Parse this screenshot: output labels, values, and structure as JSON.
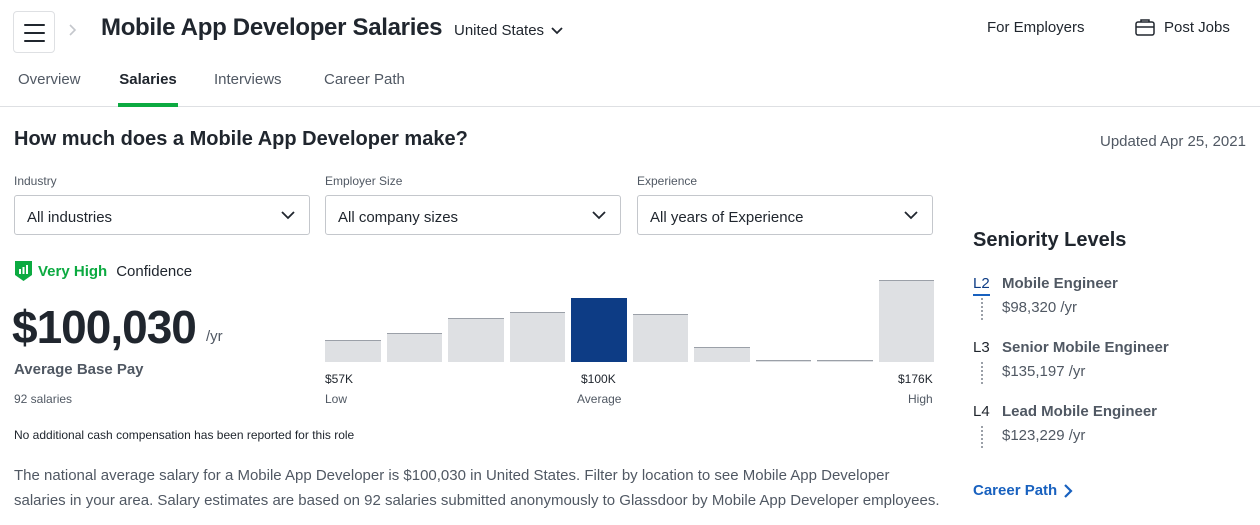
{
  "header": {
    "title": "Mobile App Developer Salaries",
    "location": "United States",
    "for_employers": "For Employers",
    "post_jobs": "Post Jobs"
  },
  "tabs": [
    {
      "label": "Overview",
      "active": false
    },
    {
      "label": "Salaries",
      "active": true
    },
    {
      "label": "Interviews",
      "active": false
    },
    {
      "label": "Career Path",
      "active": false
    }
  ],
  "main": {
    "heading": "How much does a Mobile App Developer make?",
    "updated": "Updated Apr 25, 2021",
    "filters": [
      {
        "label": "Industry",
        "value": "All industries"
      },
      {
        "label": "Employer Size",
        "value": "All company sizes"
      },
      {
        "label": "Experience",
        "value": "All years of Experience"
      }
    ],
    "confidence": {
      "level": "Very High",
      "word": "Confidence"
    },
    "pay": {
      "amount": "$100,030",
      "unit": "/yr",
      "label": "Average Base Pay",
      "count": "92 salaries"
    },
    "no_cash_note": "No additional cash compensation has been reported for this role",
    "description": "The national average salary for a Mobile App Developer is $100,030 in United States. Filter by location to see Mobile App Developer salaries in your area. Salary estimates are based on 92 salaries submitted anonymously to Glassdoor by Mobile App Developer employees."
  },
  "chart_data": {
    "type": "bar",
    "bins": 10,
    "relative_heights": [
      0.27,
      0.35,
      0.54,
      0.61,
      0.78,
      0.58,
      0.18,
      0.03,
      0.03,
      1.0
    ],
    "highlighted_bin": 4,
    "ticks": [
      {
        "value": "$57K",
        "caption": "Low"
      },
      {
        "value": "$100K",
        "caption": "Average"
      },
      {
        "value": "$176K",
        "caption": "High"
      }
    ],
    "colors": {
      "bar": "#dee0e3",
      "highlight": "#0d3c85"
    }
  },
  "seniority": {
    "title": "Seniority Levels",
    "levels": [
      {
        "code": "L2",
        "name": "Mobile Engineer",
        "pay": "$98,320 /yr",
        "active": true
      },
      {
        "code": "L3",
        "name": "Senior Mobile Engineer",
        "pay": "$135,197 /yr",
        "active": false
      },
      {
        "code": "L4",
        "name": "Lead Mobile Engineer",
        "pay": "$123,229 /yr",
        "active": false
      }
    ],
    "career_link": "Career Path"
  },
  "colors": {
    "accent_green": "#0caa41",
    "link_blue": "#1861bf",
    "highlight_navy": "#0d3c85",
    "text_primary": "#20262e",
    "text_secondary": "#505863"
  }
}
